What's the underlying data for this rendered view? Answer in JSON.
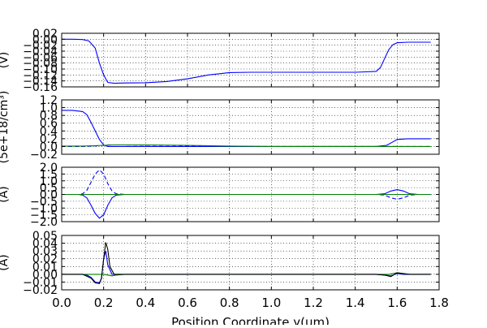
{
  "chart_data": [
    {
      "type": "line",
      "ylabel": "(V)",
      "xlim": [
        0.0,
        1.8
      ],
      "ylim": [
        -0.16,
        0.02
      ],
      "yticks": [
        "0.02",
        "0.00",
        "−0.02",
        "−0.04",
        "−0.06",
        "−0.08",
        "−0.10",
        "−0.12",
        "−0.14",
        "−0.16"
      ],
      "ytick_values": [
        0.02,
        0.0,
        -0.02,
        -0.04,
        -0.06,
        -0.08,
        -0.1,
        -0.12,
        -0.14,
        -0.16
      ],
      "grid": true,
      "series": [
        {
          "color": "#0000ff",
          "dash": "solid",
          "x": [
            0.0,
            0.05,
            0.1,
            0.13,
            0.16,
            0.18,
            0.2,
            0.22,
            0.25,
            0.3,
            0.4,
            0.5,
            0.6,
            0.7,
            0.8,
            0.9,
            1.0,
            1.2,
            1.4,
            1.5,
            1.52,
            1.54,
            1.56,
            1.58,
            1.6,
            1.65,
            1.7,
            1.76
          ],
          "y": [
            0.0,
            0.0,
            -0.001,
            -0.006,
            -0.03,
            -0.08,
            -0.12,
            -0.145,
            -0.148,
            -0.147,
            -0.146,
            -0.142,
            -0.133,
            -0.12,
            -0.112,
            -0.111,
            -0.111,
            -0.111,
            -0.111,
            -0.108,
            -0.095,
            -0.065,
            -0.035,
            -0.018,
            -0.012,
            -0.01,
            -0.01,
            -0.01
          ]
        }
      ]
    },
    {
      "type": "line",
      "ylabel": "(5e+18/cm³)",
      "xlim": [
        0.0,
        1.8
      ],
      "ylim": [
        -0.2,
        1.2
      ],
      "yticks": [
        "1.2",
        "1.0",
        "0.8",
        "0.6",
        "0.4",
        "0.2",
        "0.0",
        "−0.2"
      ],
      "ytick_values": [
        1.2,
        1.0,
        0.8,
        0.6,
        0.4,
        0.2,
        0.0,
        -0.2
      ],
      "grid": true,
      "series": [
        {
          "color": "#0000ff",
          "dash": "solid",
          "x": [
            0.0,
            0.05,
            0.1,
            0.12,
            0.14,
            0.16,
            0.18,
            0.2,
            0.22,
            0.25,
            0.5,
            1.0,
            1.5,
            1.55,
            1.58,
            1.6,
            1.65,
            1.7,
            1.76
          ],
          "y": [
            0.93,
            0.93,
            0.9,
            0.82,
            0.62,
            0.4,
            0.18,
            0.04,
            0.0,
            0.0,
            0.0,
            0.0,
            0.0,
            0.03,
            0.12,
            0.18,
            0.2,
            0.2,
            0.2
          ]
        },
        {
          "color": "#0000ff",
          "dash": "dashed",
          "x": [
            0.0,
            0.05,
            0.1,
            0.15,
            0.2,
            0.22,
            0.3,
            0.5,
            0.8,
            1.0,
            1.2,
            1.5,
            1.76
          ],
          "y": [
            0.0,
            0.0,
            0.0,
            0.01,
            0.03,
            0.04,
            0.04,
            0.03,
            0.0,
            0.0,
            0.0,
            0.0,
            0.0
          ]
        },
        {
          "color": "#008000",
          "dash": "solid",
          "x": [
            0.0,
            0.1,
            0.15,
            0.2,
            0.25,
            0.4,
            0.6,
            0.8,
            1.0,
            1.2,
            1.5,
            1.76
          ],
          "y": [
            0.01,
            0.01,
            0.02,
            0.03,
            0.04,
            0.04,
            0.03,
            0.01,
            0.0,
            0.0,
            0.0,
            0.0
          ]
        }
      ]
    },
    {
      "type": "line",
      "ylabel": "(A)",
      "xlim": [
        0.0,
        1.8
      ],
      "ylim": [
        -2.0,
        2.0
      ],
      "yticks": [
        "2.0",
        "1.5",
        "1.0",
        "0.5",
        "0.0",
        "−0.5",
        "−1.0",
        "−1.5",
        "−2.0"
      ],
      "ytick_values": [
        2.0,
        1.5,
        1.0,
        0.5,
        0.0,
        -0.5,
        -1.0,
        -1.5,
        -2.0
      ],
      "grid": true,
      "series": [
        {
          "color": "#0000ff",
          "dash": "solid",
          "x": [
            0.0,
            0.08,
            0.1,
            0.12,
            0.14,
            0.16,
            0.18,
            0.2,
            0.22,
            0.24,
            0.26,
            0.3,
            1.5,
            1.54,
            1.57,
            1.6,
            1.63,
            1.66,
            1.7,
            1.76
          ],
          "y": [
            0.0,
            0.0,
            -0.05,
            -0.25,
            -0.8,
            -1.4,
            -1.75,
            -1.5,
            -0.8,
            -0.25,
            -0.05,
            0.0,
            0.0,
            0.05,
            0.25,
            0.35,
            0.25,
            0.05,
            0.0,
            0.0
          ]
        },
        {
          "color": "#0000ff",
          "dash": "dashed",
          "x": [
            0.0,
            0.08,
            0.1,
            0.12,
            0.14,
            0.16,
            0.18,
            0.2,
            0.22,
            0.24,
            0.26,
            0.3,
            1.5,
            1.54,
            1.57,
            1.6,
            1.63,
            1.66,
            1.7,
            1.76
          ],
          "y": [
            0.0,
            0.0,
            0.05,
            0.3,
            0.9,
            1.5,
            1.8,
            1.5,
            0.8,
            0.25,
            0.05,
            0.0,
            0.0,
            -0.05,
            -0.25,
            -0.35,
            -0.25,
            -0.05,
            0.0,
            0.0
          ]
        },
        {
          "color": "#008000",
          "dash": "solid",
          "x": [
            0.0,
            1.76
          ],
          "y": [
            0.0,
            0.0
          ]
        }
      ]
    },
    {
      "type": "line",
      "ylabel": "(A)",
      "xlabel": "Position Coordinate y(um)",
      "xlim": [
        0.0,
        1.8
      ],
      "ylim": [
        -0.02,
        0.05
      ],
      "yticks": [
        "0.05",
        "0.04",
        "0.03",
        "0.02",
        "0.01",
        "0.00",
        "−0.01",
        "−0.02"
      ],
      "ytick_values": [
        0.05,
        0.04,
        0.03,
        0.02,
        0.01,
        0.0,
        -0.01,
        -0.02
      ],
      "xticks": [
        "0.0",
        "0.2",
        "0.4",
        "0.6",
        "0.8",
        "1.0",
        "1.2",
        "1.4",
        "1.6",
        "1.8"
      ],
      "xtick_values": [
        0.0,
        0.2,
        0.4,
        0.6,
        0.8,
        1.0,
        1.2,
        1.4,
        1.6,
        1.8
      ],
      "grid": true,
      "series": [
        {
          "color": "#0000ff",
          "dash": "solid",
          "x": [
            0.0,
            0.1,
            0.12,
            0.14,
            0.16,
            0.18,
            0.19,
            0.2,
            0.21,
            0.22,
            0.24,
            0.3,
            1.5,
            1.54,
            1.57,
            1.6,
            1.63,
            1.66,
            1.7,
            1.76
          ],
          "y": [
            0.0,
            0.0,
            -0.001,
            -0.004,
            -0.01,
            -0.011,
            -0.005,
            0.02,
            0.03,
            0.012,
            0.0,
            0.0,
            0.0,
            -0.001,
            -0.002,
            0.001,
            0.0,
            0.0,
            0.0,
            0.0
          ]
        },
        {
          "color": "#008000",
          "dash": "solid",
          "x": [
            0.0,
            0.2,
            0.22,
            0.24,
            0.26,
            0.3,
            1.5,
            1.56,
            1.58,
            1.6,
            1.62,
            1.66,
            1.76
          ],
          "y": [
            0.0,
            0.0,
            -0.001,
            -0.002,
            -0.001,
            0.0,
            0.0,
            0.0,
            0.001,
            0.002,
            0.001,
            0.0,
            0.0
          ]
        },
        {
          "color": "#000000",
          "dash": "solid",
          "x": [
            0.0,
            0.1,
            0.14,
            0.16,
            0.18,
            0.19,
            0.2,
            0.21,
            0.22,
            0.23,
            0.25,
            0.3,
            1.5,
            1.54,
            1.57,
            1.6,
            1.63,
            1.66,
            1.7,
            1.76
          ],
          "y": [
            0.0,
            0.0,
            -0.005,
            -0.011,
            -0.012,
            -0.005,
            0.02,
            0.041,
            0.032,
            0.01,
            0.0,
            0.0,
            0.0,
            -0.001,
            -0.003,
            0.002,
            0.001,
            0.0,
            0.0,
            0.0
          ]
        }
      ]
    }
  ]
}
